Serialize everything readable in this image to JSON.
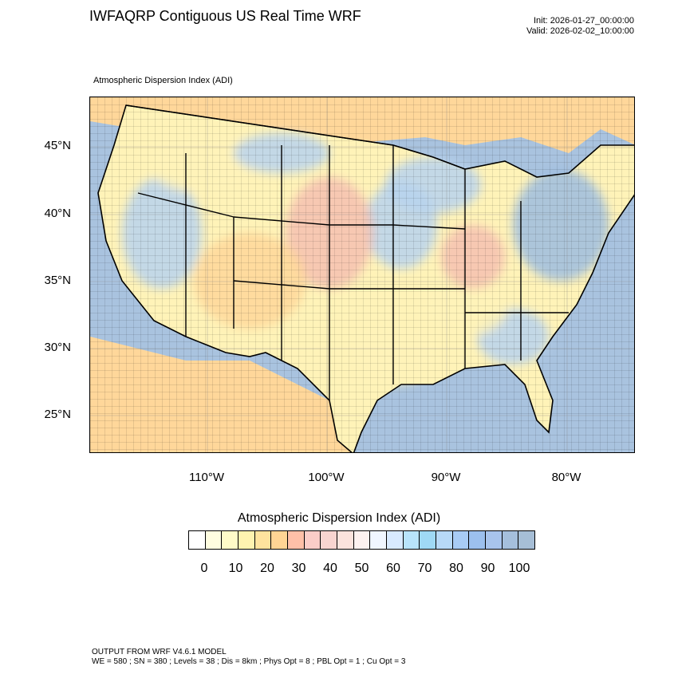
{
  "header": {
    "title": "IWFAQRP Contiguous US Real Time WRF",
    "init": "Init: 2026-01-27_00:00:00",
    "valid": "Valid: 2026-02-02_10:00:00",
    "field_label": "Atmospheric Dispersion Index   (ADI)"
  },
  "map": {
    "lat_labels": [
      "45°N",
      "40°N",
      "35°N",
      "30°N",
      "25°N"
    ],
    "lon_labels": [
      "110°W",
      "100°W",
      "90°W",
      "80°W"
    ],
    "ocean_color": "#a9c3df",
    "land_colors": {
      "low": "#fff3b8",
      "mid": "#ffd79a",
      "warm": "#f6c1b0",
      "cool": "#b9d4ef",
      "high": "#9dbde0"
    }
  },
  "colorbar": {
    "title": "Atmospheric Dispersion Index  (ADI)",
    "labels": [
      "0",
      "10",
      "20",
      "30",
      "40",
      "50",
      "60",
      "70",
      "80",
      "90",
      "100"
    ],
    "colors": [
      "#ffffff",
      "#fffde0",
      "#fffbc8",
      "#fff3b0",
      "#ffe39e",
      "#ffd494",
      "#ffc0a8",
      "#fbcdc8",
      "#f8d4d0",
      "#fbe3dd",
      "#fdf2f0",
      "#f0f6ff",
      "#d8eaff",
      "#b8e4fb",
      "#9fd9f5",
      "#b7d9f7",
      "#a8ccf5",
      "#9cc0ee",
      "#a8c4ec",
      "#a5bfdc",
      "#a6bed6"
    ]
  },
  "footer": {
    "line1": "OUTPUT FROM WRF V4.6.1 MODEL",
    "line2": "WE = 580 ; SN = 380 ; Levels = 38 ; Dis = 8km ; Phys Opt = 8 ; PBL Opt = 1 ; Cu Opt = 3"
  }
}
